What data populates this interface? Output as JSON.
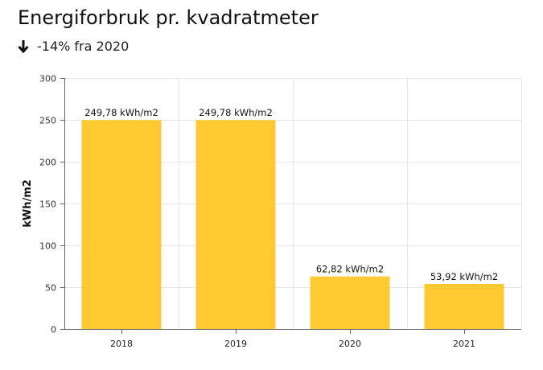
{
  "header": {
    "title": "Energiforbruk pr. kvadratmeter",
    "change_text": "-14% fra 2020",
    "change_icon": "arrow-down-icon"
  },
  "colors": {
    "bar": "#fdca31",
    "grid": "#e6e6e6",
    "axis": "#666666"
  },
  "chart_data": {
    "type": "bar",
    "categories": [
      "2018",
      "2019",
      "2020",
      "2021"
    ],
    "values": [
      249.78,
      249.78,
      62.82,
      53.92
    ],
    "data_labels": [
      "249,78 kWh/m2",
      "249,78 kWh/m2",
      "62,82 kWh/m2",
      "53,92 kWh/m2"
    ],
    "title": "Energiforbruk pr. kvadratmeter",
    "xlabel": "",
    "ylabel": "kWh/m2",
    "ylim": [
      0,
      300
    ],
    "yticks": [
      0,
      50,
      100,
      150,
      200,
      250,
      300
    ],
    "grid": true
  }
}
